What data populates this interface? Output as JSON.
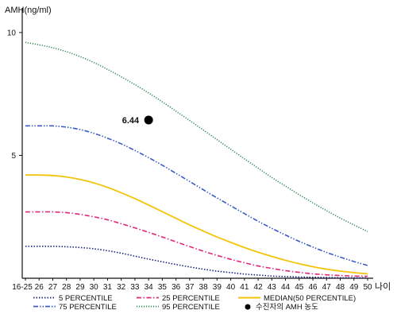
{
  "chart_data": {
    "type": "line",
    "title": "",
    "ylabel": "AMH(ng/ml)",
    "xlabel": "나이",
    "ylim": [
      0,
      11
    ],
    "y_ticks": [
      5,
      10
    ],
    "grid": false,
    "legend_position": "bottom",
    "categories": [
      "16-25",
      "26",
      "27",
      "28",
      "29",
      "30",
      "31",
      "32",
      "33",
      "34",
      "35",
      "36",
      "37",
      "38",
      "39",
      "40",
      "41",
      "42",
      "43",
      "44",
      "45",
      "46",
      "47",
      "48",
      "49",
      "50"
    ],
    "series": [
      {
        "name": "5 PERCENTILE",
        "color": "#1a237e",
        "dash": "dotted",
        "values": [
          1.3,
          1.3,
          1.3,
          1.28,
          1.25,
          1.2,
          1.12,
          1.02,
          0.9,
          0.78,
          0.67,
          0.56,
          0.46,
          0.37,
          0.29,
          0.23,
          0.17,
          0.13,
          0.09,
          0.07,
          0.05,
          0.04,
          0.03,
          0.02,
          0.02,
          0.02
        ]
      },
      {
        "name": "25 PERCENTILE",
        "color": "#e0287a",
        "dash": "dash-dot",
        "values": [
          2.7,
          2.7,
          2.7,
          2.67,
          2.6,
          2.5,
          2.38,
          2.22,
          2.05,
          1.87,
          1.68,
          1.48,
          1.29,
          1.1,
          0.93,
          0.77,
          0.63,
          0.5,
          0.4,
          0.31,
          0.24,
          0.18,
          0.14,
          0.11,
          0.09,
          0.08
        ]
      },
      {
        "name": "MEDIAN(50 PERCENTILE)",
        "color": "#f2c40a",
        "dash": "solid",
        "values": [
          4.2,
          4.2,
          4.18,
          4.12,
          4.02,
          3.88,
          3.7,
          3.48,
          3.24,
          2.98,
          2.71,
          2.44,
          2.17,
          1.92,
          1.68,
          1.46,
          1.25,
          1.06,
          0.89,
          0.73,
          0.59,
          0.47,
          0.37,
          0.29,
          0.23,
          0.18
        ]
      },
      {
        "name": "75 PERCENTILE",
        "color": "#3b5cc7",
        "dash": "dash-dot-dot",
        "values": [
          6.2,
          6.2,
          6.2,
          6.15,
          6.05,
          5.9,
          5.7,
          5.47,
          5.2,
          4.91,
          4.6,
          4.27,
          3.94,
          3.6,
          3.27,
          2.95,
          2.63,
          2.32,
          2.03,
          1.76,
          1.5,
          1.27,
          1.05,
          0.86,
          0.68,
          0.52
        ]
      },
      {
        "name": "95 PERCENTILE",
        "color": "#2e8b57",
        "dash": "dense-dotted",
        "values": [
          9.6,
          9.5,
          9.38,
          9.22,
          9.02,
          8.78,
          8.5,
          8.2,
          7.88,
          7.54,
          7.18,
          6.8,
          6.42,
          6.03,
          5.64,
          5.25,
          4.86,
          4.48,
          4.1,
          3.75,
          3.4,
          3.07,
          2.75,
          2.45,
          2.17,
          1.9
        ]
      }
    ],
    "patient_point": {
      "name": "수진자의 AMH 농도",
      "x": "34",
      "y": 6.44,
      "label": "6.44",
      "color": "#000000"
    }
  }
}
